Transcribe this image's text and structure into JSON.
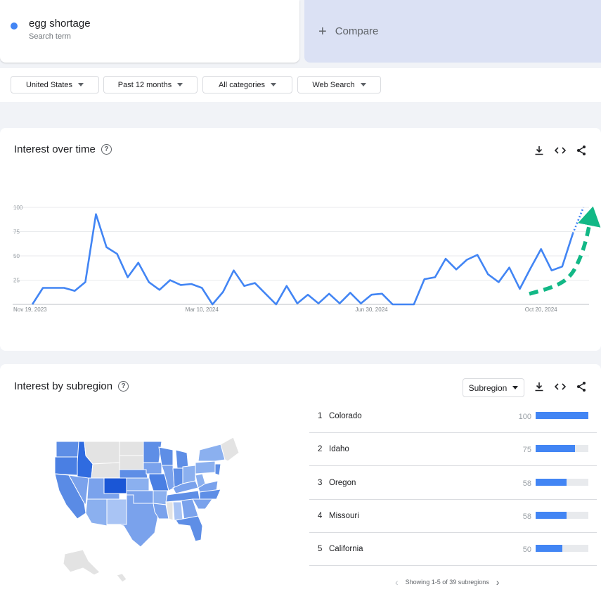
{
  "search_term": {
    "name": "egg shortage",
    "type": "Search term",
    "color": "#4285f4"
  },
  "compare": {
    "label": "Compare",
    "icon": "plus-icon"
  },
  "filters": [
    {
      "label": "United States"
    },
    {
      "label": "Past 12 months"
    },
    {
      "label": "All categories"
    },
    {
      "label": "Web Search"
    }
  ],
  "interest_over_time": {
    "title": "Interest over time",
    "tools": [
      "download-icon",
      "embed-icon",
      "share-icon"
    ]
  },
  "chart_data": {
    "type": "line",
    "title": "Interest over time",
    "x": [
      "Nov 19, 2023",
      "Nov 26, 2023",
      "Dec 3, 2023",
      "Dec 10, 2023",
      "Dec 17, 2023",
      "Dec 24, 2023",
      "Dec 31, 2023",
      "Jan 7, 2024",
      "Jan 14, 2024",
      "Jan 21, 2024",
      "Jan 28, 2024",
      "Feb 4, 2024",
      "Feb 11, 2024",
      "Feb 18, 2024",
      "Feb 25, 2024",
      "Mar 3, 2024",
      "Mar 10, 2024",
      "Mar 17, 2024",
      "Mar 24, 2024",
      "Mar 31, 2024",
      "Apr 7, 2024",
      "Apr 14, 2024",
      "Apr 21, 2024",
      "Apr 28, 2024",
      "May 5, 2024",
      "May 12, 2024",
      "May 19, 2024",
      "May 26, 2024",
      "Jun 2, 2024",
      "Jun 9, 2024",
      "Jun 16, 2024",
      "Jun 23, 2024",
      "Jun 30, 2024",
      "Jul 7, 2024",
      "Jul 14, 2024",
      "Jul 21, 2024",
      "Jul 28, 2024",
      "Aug 4, 2024",
      "Aug 11, 2024",
      "Aug 18, 2024",
      "Aug 25, 2024",
      "Sep 1, 2024",
      "Sep 8, 2024",
      "Sep 15, 2024",
      "Sep 22, 2024",
      "Sep 29, 2024",
      "Oct 6, 2024",
      "Oct 13, 2024",
      "Oct 20, 2024",
      "Oct 27, 2024",
      "Nov 3, 2024",
      "Nov 10, 2024",
      "Nov 17, 2024"
    ],
    "values": [
      0,
      17,
      17,
      17,
      14,
      23,
      93,
      59,
      52,
      28,
      43,
      23,
      15,
      25,
      20,
      21,
      17,
      0,
      13,
      35,
      19,
      22,
      11,
      0,
      19,
      1,
      10,
      1,
      11,
      1,
      12,
      1,
      10,
      11,
      0,
      0,
      0,
      26,
      28,
      47,
      36,
      46,
      51,
      31,
      23,
      38,
      16,
      37,
      57,
      35,
      39,
      73,
      100
    ],
    "partial_from_index": 51,
    "x_tick_labels": [
      "Nov 19, 2023",
      "Mar 10, 2024",
      "Jun 30, 2024",
      "Oct 20, 2024"
    ],
    "y_tick_labels": [
      "100",
      "75",
      "50",
      "25"
    ],
    "ylim": [
      0,
      100
    ],
    "grid": true,
    "annotation": "green dashed upward arrow over final weeks",
    "annotation_color": "#12b886"
  },
  "interest_by_subregion": {
    "title": "Interest by subregion",
    "select_label": "Subregion",
    "tools": [
      "download-icon",
      "embed-icon",
      "share-icon"
    ],
    "rankings": [
      {
        "rank": "1",
        "name": "Colorado",
        "value": 100
      },
      {
        "rank": "2",
        "name": "Idaho",
        "value": 75
      },
      {
        "rank": "3",
        "name": "Oregon",
        "value": 58
      },
      {
        "rank": "4",
        "name": "Missouri",
        "value": 58
      },
      {
        "rank": "5",
        "name": "California",
        "value": 50
      }
    ],
    "pager_text": "Showing 1-5 of 39 subregions"
  },
  "colors": {
    "accent": "#4285f4",
    "map_max": "#1a56d6",
    "map_none": "#e3e3e3"
  }
}
